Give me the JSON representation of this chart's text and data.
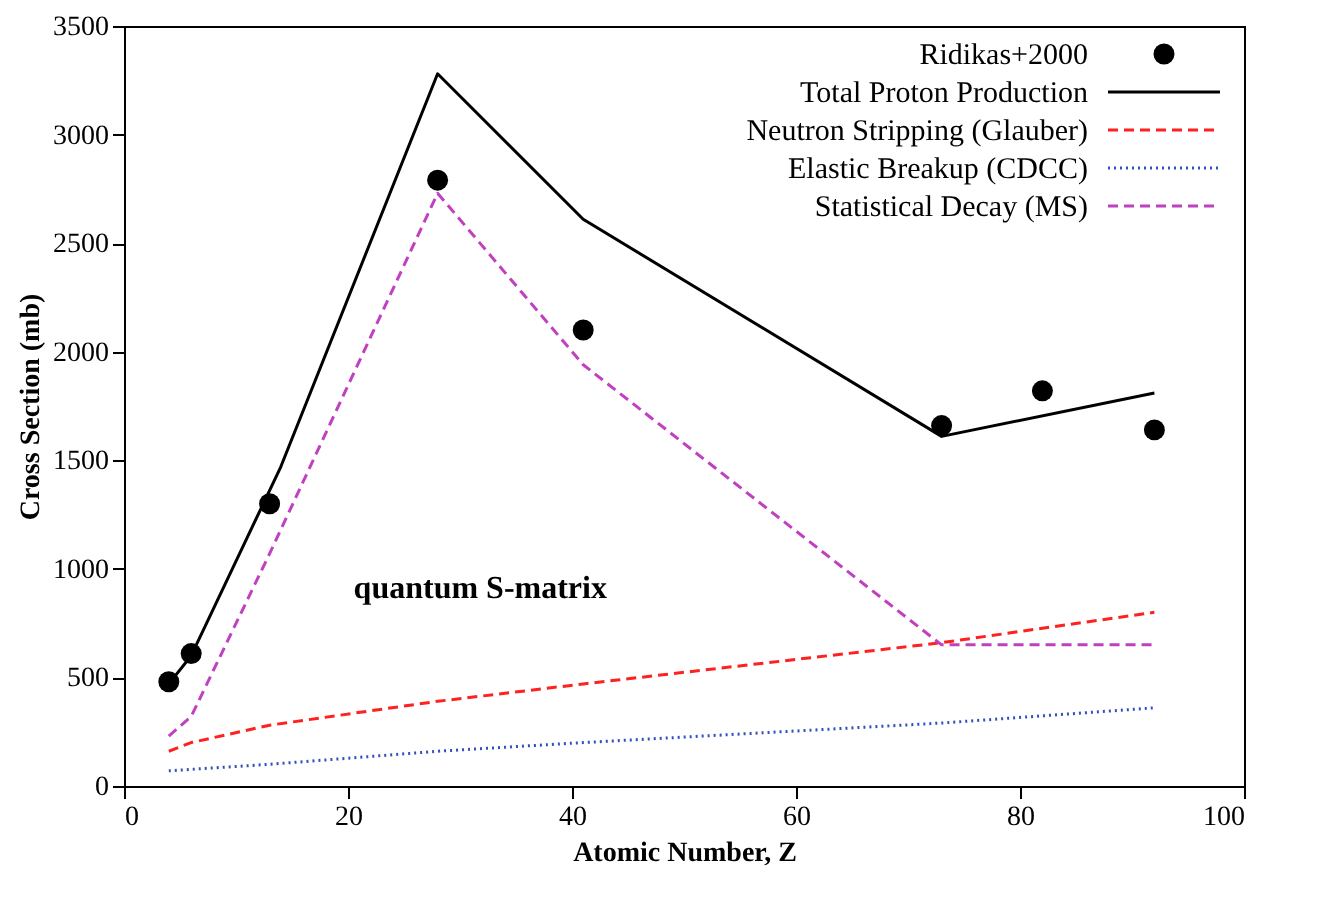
{
  "chart_data": {
    "type": "line",
    "xlabel": "Atomic Number, Z",
    "ylabel": "Cross Section (mb)",
    "xlim": [
      0,
      100
    ],
    "xticks": [
      0,
      20,
      40,
      60,
      80,
      100
    ],
    "ylim": [
      0,
      3500
    ],
    "yticks": [
      0,
      500,
      1000,
      1500,
      2000,
      2500,
      3000,
      3500
    ],
    "grid": false,
    "legend": "top right",
    "annotations": [
      "quantum S-matrix"
    ],
    "series": [
      {
        "name": "Ridikas+2000",
        "type": "scatter",
        "marker": "circle",
        "color": "#000000",
        "x": [
          4,
          6,
          13,
          28,
          41,
          73,
          82,
          92
        ],
        "values": [
          480,
          610,
          1300,
          2790,
          2100,
          1660,
          1820,
          1640
        ]
      },
      {
        "name": "Total Proton Production",
        "color": "#000000",
        "line_style": "solid",
        "x": [
          4,
          6,
          14,
          28,
          41,
          73,
          92
        ],
        "values": [
          470,
          600,
          1470,
          3280,
          2610,
          1610,
          1810
        ]
      },
      {
        "name": "Neutron Stripping (Glauber)",
        "color": "#ff2020",
        "line_style": "dashed",
        "x": [
          4,
          6,
          13,
          28,
          41,
          73,
          92
        ],
        "values": [
          160,
          200,
          280,
          390,
          470,
          660,
          800
        ]
      },
      {
        "name": "Elastic Breakup (CDCC)",
        "color": "#3050c0",
        "line_style": "dotted",
        "x": [
          4,
          13,
          28,
          41,
          73,
          92
        ],
        "values": [
          70,
          100,
          160,
          200,
          290,
          360
        ]
      },
      {
        "name": "Statistical Decay (MS)",
        "color": "#c040c0",
        "line_style": "dashed",
        "x": [
          4,
          6,
          13,
          28,
          41,
          73,
          92
        ],
        "values": [
          230,
          320,
          1070,
          2730,
          1940,
          650,
          650
        ]
      }
    ]
  }
}
